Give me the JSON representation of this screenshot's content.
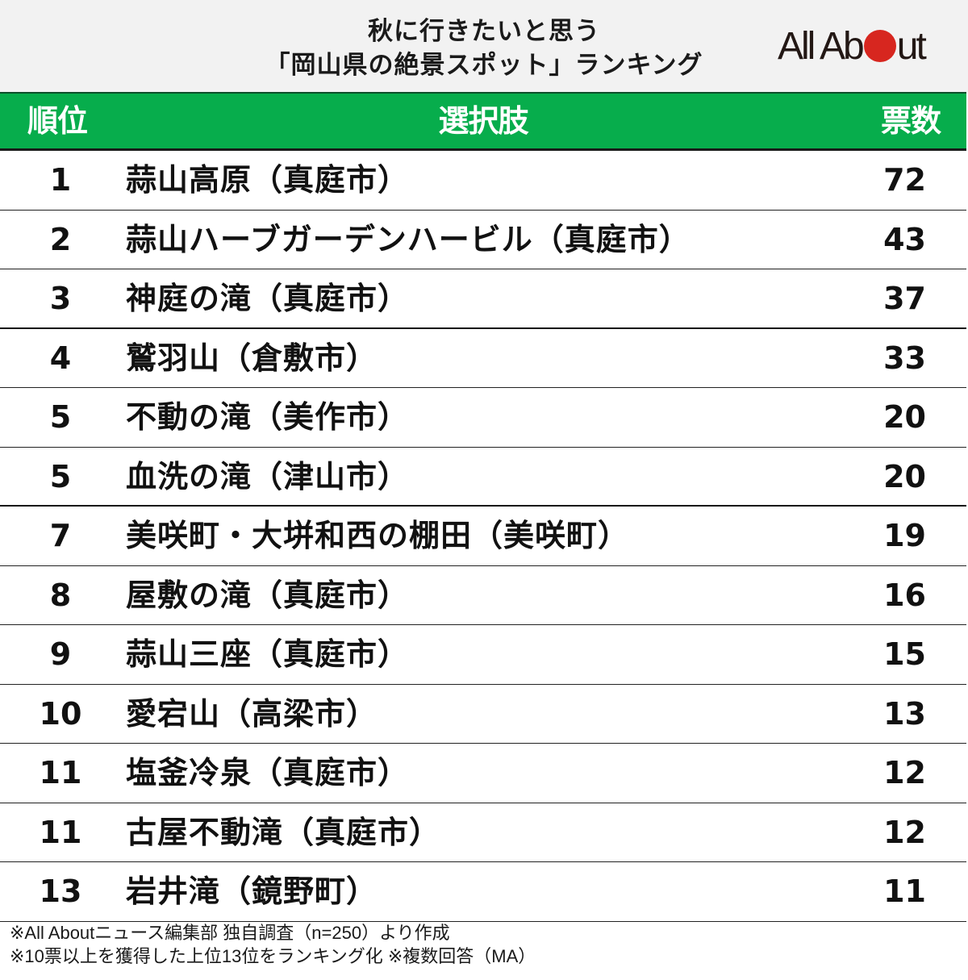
{
  "title": {
    "line1": "秋に行きたいと思う",
    "line2": "「岡山県の絶景スポット」ランキング"
  },
  "logo": {
    "text_before": "All Ab",
    "text_after": "ut",
    "dot_color": "#d7261f"
  },
  "table": {
    "header_color": "#07ad4c",
    "columns": [
      "順位",
      "選択肢",
      "票数"
    ],
    "rows": [
      {
        "rank": "1",
        "name": "蒜山高原（真庭市）",
        "votes": "72"
      },
      {
        "rank": "2",
        "name": "蒜山ハーブガーデンハービル（真庭市）",
        "votes": "43"
      },
      {
        "rank": "3",
        "name": "神庭の滝（真庭市）",
        "votes": "37"
      },
      {
        "rank": "4",
        "name": "鷲羽山（倉敷市）",
        "votes": "33"
      },
      {
        "rank": "5",
        "name": "不動の滝（美作市）",
        "votes": "20"
      },
      {
        "rank": "5",
        "name": "血洗の滝（津山市）",
        "votes": "20"
      },
      {
        "rank": "7",
        "name": "美咲町・大垪和西の棚田（美咲町）",
        "votes": "19"
      },
      {
        "rank": "8",
        "name": "屋敷の滝（真庭市）",
        "votes": "16"
      },
      {
        "rank": "9",
        "name": "蒜山三座（真庭市）",
        "votes": "15"
      },
      {
        "rank": "10",
        "name": "愛宕山（高梁市）",
        "votes": "13"
      },
      {
        "rank": "11",
        "name": "塩釜冷泉（真庭市）",
        "votes": "12"
      },
      {
        "rank": "11",
        "name": "古屋不動滝（真庭市）",
        "votes": "12"
      },
      {
        "rank": "13",
        "name": "岩井滝（鏡野町）",
        "votes": "11"
      }
    ]
  },
  "footer": {
    "note1": "※All Aboutニュース編集部 独自調査（n=250）より作成",
    "note2": "※10票以上を獲得した上位13位をランキング化 ※複数回答（MA）"
  }
}
